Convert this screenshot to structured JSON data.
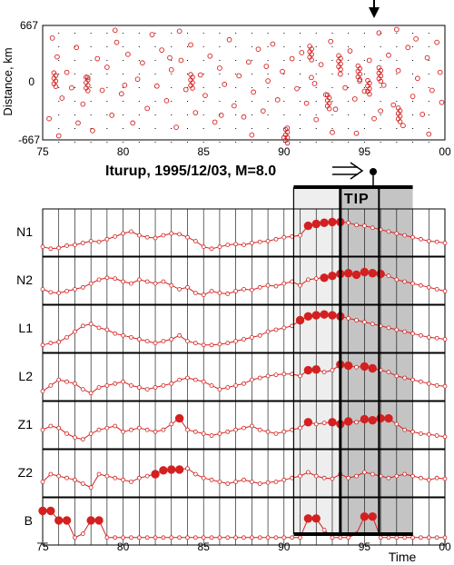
{
  "chart_data": [
    {
      "type": "scatter",
      "ylabel": "Distance, km",
      "ylim": [
        -667,
        667
      ],
      "xlim": [
        75,
        100
      ],
      "y_ticks": [
        "667",
        "0",
        "-667"
      ],
      "x_ticks": [
        "75",
        "80",
        "85",
        "90",
        "95",
        "00"
      ],
      "event_marker_time": 95.9,
      "points": [
        [
          75.6,
          520
        ],
        [
          75.9,
          300
        ],
        [
          76.2,
          -180
        ],
        [
          75.4,
          -420
        ],
        [
          76.5,
          120
        ],
        [
          76.8,
          -60
        ],
        [
          77.1,
          410
        ],
        [
          77.5,
          -250
        ],
        [
          77.8,
          60
        ],
        [
          78.1,
          -560
        ],
        [
          78.4,
          280
        ],
        [
          78.7,
          -90
        ],
        [
          79.0,
          180
        ],
        [
          79.3,
          -380
        ],
        [
          79.6,
          470
        ],
        [
          79.9,
          -130
        ],
        [
          80.3,
          330
        ],
        [
          80.6,
          -470
        ],
        [
          80.9,
          40
        ],
        [
          81.2,
          230
        ],
        [
          81.5,
          -300
        ],
        [
          81.8,
          560
        ],
        [
          82.1,
          -40
        ],
        [
          82.4,
          380
        ],
        [
          82.7,
          -210
        ],
        [
          83.0,
          150
        ],
        [
          83.3,
          -520
        ],
        [
          83.6,
          260
        ],
        [
          83.9,
          -80
        ],
        [
          84.2,
          440
        ],
        [
          84.5,
          -350
        ],
        [
          84.8,
          90
        ],
        [
          85.1,
          -150
        ],
        [
          85.4,
          310
        ],
        [
          85.7,
          -460
        ],
        [
          86.0,
          170
        ],
        [
          86.3,
          -20
        ],
        [
          86.6,
          500
        ],
        [
          86.9,
          -270
        ],
        [
          87.2,
          80
        ],
        [
          87.5,
          -400
        ],
        [
          87.8,
          240
        ],
        [
          88.1,
          -110
        ],
        [
          88.4,
          390
        ],
        [
          88.7,
          -330
        ],
        [
          89.0,
          20
        ],
        [
          89.3,
          450
        ],
        [
          89.6,
          -200
        ],
        [
          89.9,
          130
        ],
        [
          90.2,
          -530
        ],
        [
          90.5,
          280
        ],
        [
          90.8,
          -70
        ],
        [
          91.1,
          350
        ],
        [
          91.4,
          -240
        ],
        [
          91.7,
          60
        ],
        [
          92.0,
          -430
        ],
        [
          92.3,
          210
        ],
        [
          92.6,
          -140
        ],
        [
          92.9,
          480
        ],
        [
          93.2,
          -310
        ],
        [
          93.5,
          100
        ],
        [
          93.8,
          -60
        ],
        [
          94.1,
          370
        ],
        [
          94.4,
          -190
        ],
        [
          94.7,
          20
        ],
        [
          95.0,
          -100
        ],
        [
          95.3,
          260
        ],
        [
          95.6,
          -420
        ],
        [
          95.9,
          580
        ],
        [
          96.2,
          -30
        ],
        [
          96.5,
          320
        ],
        [
          96.8,
          -260
        ],
        [
          97.1,
          140
        ],
        [
          97.4,
          -500
        ],
        [
          97.7,
          410
        ],
        [
          98.0,
          -160
        ],
        [
          98.3,
          50
        ],
        [
          98.6,
          -370
        ],
        [
          98.9,
          290
        ],
        [
          99.2,
          -90
        ],
        [
          99.5,
          470
        ],
        [
          99.8,
          -230
        ],
        [
          76.0,
          -620
        ],
        [
          79.5,
          610
        ],
        [
          83.5,
          600
        ],
        [
          88.0,
          -610
        ],
        [
          90.0,
          -640
        ],
        [
          94.5,
          -590
        ],
        [
          97.0,
          620
        ],
        [
          99.0,
          -600
        ],
        [
          77.2,
          -470
        ],
        [
          80.1,
          -30
        ],
        [
          82.9,
          290
        ],
        [
          86.1,
          -380
        ],
        [
          88.9,
          190
        ],
        [
          91.9,
          -10
        ],
        [
          93.0,
          -580
        ],
        [
          96.0,
          -330
        ],
        [
          98.2,
          510
        ],
        [
          99.7,
          120
        ]
      ],
      "clusters": [
        {
          "x": 75.7,
          "y": 30
        },
        {
          "x": 77.7,
          "y": -20
        },
        {
          "x": 84.2,
          "y": 10
        },
        {
          "x": 90.1,
          "y": -630
        },
        {
          "x": 91.6,
          "y": 340
        },
        {
          "x": 92.7,
          "y": -230
        },
        {
          "x": 93.4,
          "y": 230
        },
        {
          "x": 94.6,
          "y": 110
        },
        {
          "x": 95.2,
          "y": -60
        },
        {
          "x": 95.9,
          "y": 90
        },
        {
          "x": 97.1,
          "y": -380
        }
      ]
    },
    {
      "type": "line",
      "title": "Iturup, 1995/12/03, M=8.0",
      "xlabel": "Time",
      "xlim": [
        75,
        100
      ],
      "x_ticks": [
        "75",
        "80",
        "85",
        "90",
        "95",
        "00"
      ],
      "tip_label": "TIP",
      "event_time": 95.9,
      "alarm_window": [
        90.6,
        98.0
      ],
      "tip_window": [
        93.5,
        98.0
      ],
      "x": [
        75.0,
        75.5,
        76.0,
        76.5,
        77.0,
        77.5,
        78.0,
        78.5,
        79.0,
        79.5,
        80.0,
        80.5,
        81.0,
        81.5,
        82.0,
        82.5,
        83.0,
        83.5,
        84.0,
        84.5,
        85.0,
        85.5,
        86.0,
        86.5,
        87.0,
        87.5,
        88.0,
        88.5,
        89.0,
        89.5,
        90.0,
        90.5,
        91.0,
        91.5,
        92.0,
        92.5,
        93.0,
        93.5,
        94.0,
        94.5,
        95.0,
        95.5,
        96.0,
        96.5,
        97.0,
        97.5,
        98.0,
        98.5,
        99.0,
        99.5,
        100.0
      ],
      "series": [
        {
          "name": "N1",
          "values": [
            0.15,
            0.1,
            0.12,
            0.18,
            0.2,
            0.25,
            0.3,
            0.28,
            0.35,
            0.42,
            0.5,
            0.55,
            0.45,
            0.4,
            0.38,
            0.45,
            0.5,
            0.48,
            0.4,
            0.3,
            0.15,
            0.1,
            0.15,
            0.2,
            0.22,
            0.2,
            0.25,
            0.28,
            0.3,
            0.35,
            0.4,
            0.42,
            0.45,
            0.7,
            0.75,
            0.78,
            0.8,
            0.8,
            0.78,
            0.72,
            0.7,
            0.65,
            0.6,
            0.55,
            0.5,
            0.45,
            0.4,
            0.35,
            0.3,
            0.28,
            0.25
          ],
          "alarms": [
            33,
            34,
            35,
            36,
            37
          ]
        },
        {
          "name": "N2",
          "values": [
            0.3,
            0.22,
            0.2,
            0.25,
            0.3,
            0.35,
            0.45,
            0.55,
            0.6,
            0.58,
            0.5,
            0.45,
            0.55,
            0.5,
            0.45,
            0.5,
            0.4,
            0.3,
            0.35,
            0.2,
            0.15,
            0.25,
            0.2,
            0.18,
            0.25,
            0.3,
            0.28,
            0.35,
            0.4,
            0.38,
            0.45,
            0.5,
            0.4,
            0.55,
            0.58,
            0.6,
            0.65,
            0.7,
            0.72,
            0.68,
            0.75,
            0.72,
            0.7,
            0.65,
            0.55,
            0.5,
            0.45,
            0.4,
            0.35,
            0.3,
            0.25
          ],
          "alarms": [
            35,
            36,
            37,
            38,
            39,
            40,
            41,
            42
          ]
        },
        {
          "name": "L1",
          "values": [
            0.1,
            0.15,
            0.18,
            0.3,
            0.45,
            0.6,
            0.65,
            0.55,
            0.5,
            0.4,
            0.35,
            0.3,
            0.25,
            0.2,
            0.15,
            0.2,
            0.25,
            0.35,
            0.2,
            0.15,
            0.1,
            0.1,
            0.12,
            0.15,
            0.2,
            0.25,
            0.3,
            0.35,
            0.45,
            0.5,
            0.55,
            0.6,
            0.75,
            0.85,
            0.88,
            0.9,
            0.88,
            0.85,
            0.8,
            0.75,
            0.7,
            0.65,
            0.6,
            0.55,
            0.5,
            0.45,
            0.4,
            0.35,
            0.3,
            0.28,
            0.25
          ],
          "alarms": [
            32,
            33,
            34,
            35,
            36,
            37
          ]
        },
        {
          "name": "L2",
          "values": [
            0.15,
            0.3,
            0.45,
            0.4,
            0.35,
            0.2,
            0.1,
            0.25,
            0.3,
            0.35,
            0.4,
            0.3,
            0.25,
            0.2,
            0.25,
            0.3,
            0.35,
            0.45,
            0.5,
            0.45,
            0.4,
            0.3,
            0.2,
            0.25,
            0.3,
            0.35,
            0.45,
            0.5,
            0.55,
            0.58,
            0.6,
            0.6,
            0.55,
            0.7,
            0.72,
            0.65,
            0.7,
            0.85,
            0.82,
            0.78,
            0.8,
            0.75,
            0.7,
            0.65,
            0.55,
            0.5,
            0.45,
            0.4,
            0.35,
            0.3,
            0.28
          ],
          "alarms": [
            33,
            34,
            37,
            38,
            40,
            41
          ]
        },
        {
          "name": "Z1",
          "values": [
            0.4,
            0.5,
            0.45,
            0.3,
            0.2,
            0.15,
            0.3,
            0.4,
            0.45,
            0.5,
            0.35,
            0.4,
            0.45,
            0.4,
            0.35,
            0.4,
            0.55,
            0.7,
            0.4,
            0.35,
            0.3,
            0.25,
            0.3,
            0.35,
            0.4,
            0.45,
            0.5,
            0.4,
            0.35,
            0.3,
            0.35,
            0.4,
            0.45,
            0.6,
            0.55,
            0.58,
            0.6,
            0.55,
            0.62,
            0.6,
            0.68,
            0.65,
            0.7,
            0.7,
            0.55,
            0.4,
            0.35,
            0.3,
            0.28,
            0.25,
            0.22
          ],
          "alarms": [
            17,
            33,
            36,
            37,
            38,
            40,
            41,
            42,
            43
          ]
        },
        {
          "name": "Z2",
          "values": [
            0.3,
            0.5,
            0.45,
            0.4,
            0.35,
            0.25,
            0.15,
            0.5,
            0.45,
            0.4,
            0.35,
            0.3,
            0.4,
            0.45,
            0.5,
            0.6,
            0.62,
            0.62,
            0.65,
            0.5,
            0.4,
            0.35,
            0.3,
            0.25,
            0.3,
            0.35,
            0.3,
            0.25,
            0.28,
            0.3,
            0.35,
            0.4,
            0.45,
            0.55,
            0.45,
            0.4,
            0.38,
            0.5,
            0.4,
            0.45,
            0.55,
            0.5,
            0.45,
            0.4,
            0.45,
            0.5,
            0.45,
            0.4,
            0.35,
            0.4,
            0.38
          ],
          "alarms": [
            14,
            15,
            16,
            17
          ]
        },
        {
          "name": "B",
          "values": [
            0.8,
            0.8,
            0.55,
            0.55,
            0.1,
            0.2,
            0.55,
            0.55,
            0.1,
            0.1,
            0.1,
            0.1,
            0.1,
            0.1,
            0.1,
            0.1,
            0.1,
            0.1,
            0.1,
            0.1,
            0.1,
            0.1,
            0.1,
            0.1,
            0.1,
            0.1,
            0.1,
            0.1,
            0.1,
            0.1,
            0.1,
            0.1,
            0.1,
            0.6,
            0.6,
            0.3,
            0.1,
            0.1,
            0.1,
            0.2,
            0.65,
            0.65,
            0.1,
            0.1,
            0.1,
            0.1,
            0.1,
            0.1,
            0.1,
            0.1,
            0.1
          ],
          "alarms": [
            0,
            1,
            2,
            3,
            6,
            7,
            33,
            34,
            40,
            41
          ]
        }
      ]
    }
  ]
}
